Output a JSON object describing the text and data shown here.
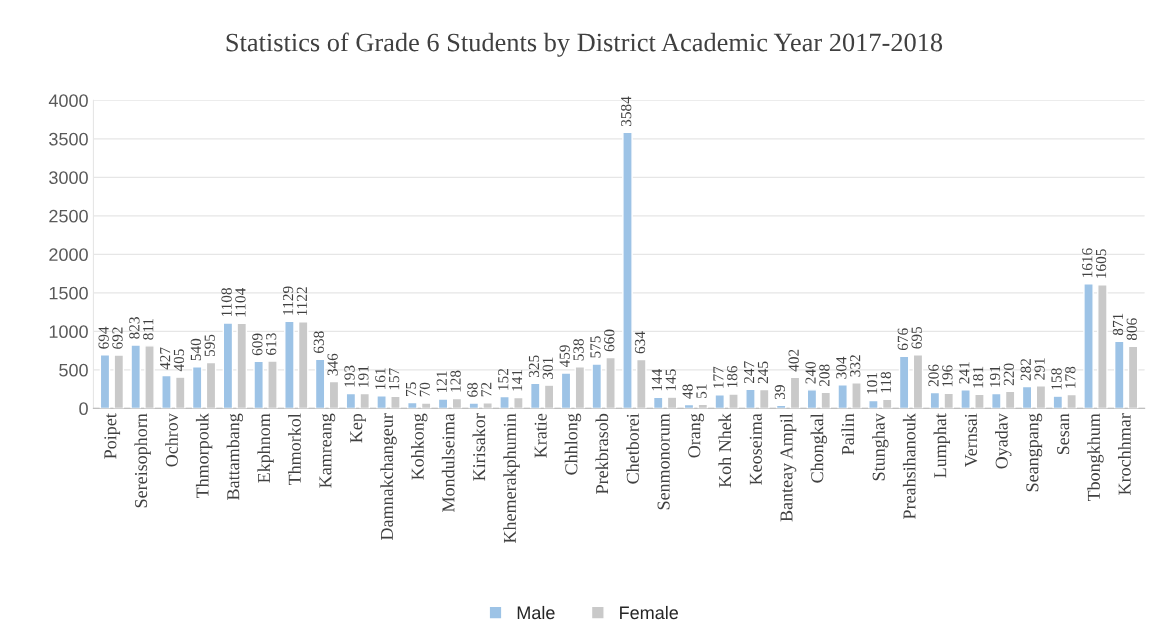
{
  "chart_data": {
    "type": "bar",
    "title": "Statistics of Grade 6 Students by District Academic Year 2017-2018",
    "categories": [
      "Poipet",
      "Sereisophorn",
      "Ochrov",
      "Thmorpouk",
      "Battambang",
      "Ekphnom",
      "Thmorkol",
      "Kamreang",
      "Kep",
      "Damnakchangeur",
      "Kohkong",
      "Mondulseima",
      "Kirisakor",
      "Khemerakphumin",
      "Kratie",
      "Chhlong",
      "Prekbrasob",
      "Chetborei",
      "Senmonorum",
      "Orang",
      "Koh Nhek",
      "Keoseima",
      "Banteay Ampil",
      "Chongkal",
      "Pailin",
      "Stunghav",
      "Preahsihanouk",
      "Lumphat",
      "Vernsai",
      "Oyadav",
      "Seangpang",
      "Sesan",
      "Tbongkhum",
      "Krochhmar"
    ],
    "series": [
      {
        "name": "Male",
        "color": "#9dc3e6",
        "values": [
          694,
          823,
          427,
          540,
          1108,
          609,
          1129,
          638,
          193,
          161,
          75,
          121,
          68,
          152,
          325,
          459,
          575,
          3584,
          144,
          48,
          177,
          247,
          39,
          240,
          304,
          101,
          676,
          206,
          241,
          191,
          282,
          158,
          1616,
          871
        ]
      },
      {
        "name": "Female",
        "color": "#c9c9c9",
        "values": [
          692,
          811,
          405,
          595,
          1104,
          613,
          1122,
          346,
          191,
          157,
          70,
          128,
          72,
          141,
          301,
          538,
          660,
          634,
          145,
          51,
          186,
          245,
          402,
          208,
          332,
          118,
          695,
          196,
          181,
          220,
          291,
          178,
          1605,
          806
        ]
      }
    ],
    "ylim": [
      0,
      4000
    ],
    "yticks": [
      0,
      500,
      1000,
      1500,
      2000,
      2500,
      3000,
      3500,
      4000
    ],
    "grid": "y",
    "legend": "bottom",
    "data_labels": true
  }
}
